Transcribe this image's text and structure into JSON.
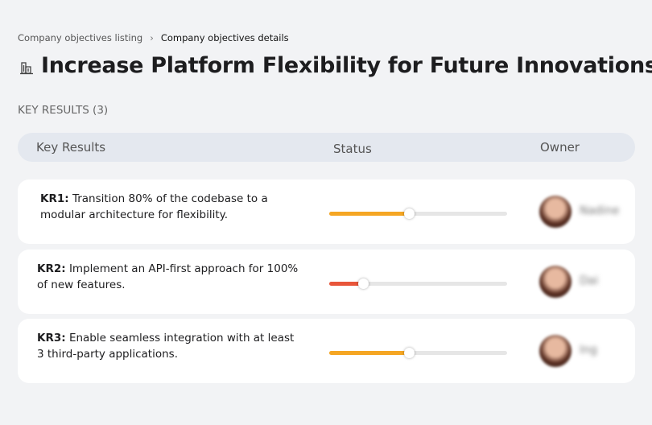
{
  "breadcrumb": {
    "parent": "Company objectives listing",
    "current": "Company objectives details"
  },
  "header": {
    "title": "Increase Platform Flexibility for Future Innovations"
  },
  "section": {
    "label": "KEY RESULTS (3)"
  },
  "table": {
    "columns": [
      "Key Results",
      "Status",
      "Owner"
    ],
    "rows": [
      {
        "label": "KR1:",
        "text": "Transition 80% of the codebase to a modular architecture for flexibility.",
        "progress": 45,
        "color": "#f5a623",
        "owner": "Nadine"
      },
      {
        "label": "KR2:",
        "text": "Implement an API-first approach for 100% of new features.",
        "progress": 19,
        "color": "#e8553a",
        "owner": "Dai"
      },
      {
        "label": "KR3:",
        "text": "Enable seamless integration with at least 3 third-party applications.",
        "progress": 45,
        "color": "#f5a623",
        "owner": "Ing"
      }
    ]
  }
}
